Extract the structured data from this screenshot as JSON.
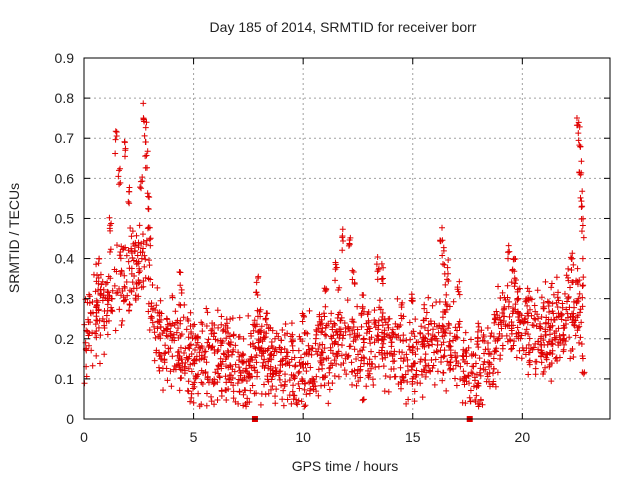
{
  "chart_data": {
    "type": "scatter",
    "title": "Day 185 of 2014, SRMTID for receiver borr",
    "xlabel": "GPS time / hours",
    "ylabel": "SRMTID / TECUs",
    "xlim": [
      0,
      24
    ],
    "ylim": [
      0,
      0.9
    ],
    "x_ticks": [
      0,
      5,
      10,
      15,
      20
    ],
    "x_tick_labels": [
      "0",
      "5",
      "10",
      "15",
      "20"
    ],
    "y_ticks": [
      0,
      0.1,
      0.2,
      0.3,
      0.4,
      0.5,
      0.6,
      0.7,
      0.8,
      0.9
    ],
    "y_tick_labels": [
      "0",
      "0.1",
      "0.2",
      "0.3",
      "0.4",
      "0.5",
      "0.6",
      "0.7",
      "0.8",
      "0.9"
    ],
    "grid": true,
    "marker": "plus",
    "color": "#e00000",
    "zero_markers_x": [
      7.8,
      17.6
    ],
    "series": [
      {
        "name": "SRMTID",
        "trend": [
          [
            0.0,
            0.2
          ],
          [
            0.3,
            0.22
          ],
          [
            0.6,
            0.26
          ],
          [
            1.0,
            0.28
          ],
          [
            1.5,
            0.33
          ],
          [
            2.0,
            0.35
          ],
          [
            2.5,
            0.38
          ],
          [
            2.9,
            0.4
          ],
          [
            3.2,
            0.22
          ],
          [
            3.6,
            0.2
          ],
          [
            4.0,
            0.19
          ],
          [
            4.5,
            0.2
          ],
          [
            4.8,
            0.14
          ],
          [
            5.5,
            0.16
          ],
          [
            6.0,
            0.15
          ],
          [
            6.5,
            0.15
          ],
          [
            7.0,
            0.14
          ],
          [
            7.5,
            0.12
          ],
          [
            7.9,
            0.18
          ],
          [
            8.5,
            0.15
          ],
          [
            9.0,
            0.14
          ],
          [
            9.5,
            0.13
          ],
          [
            10.0,
            0.12
          ],
          [
            10.5,
            0.15
          ],
          [
            11.0,
            0.17
          ],
          [
            11.5,
            0.19
          ],
          [
            12.0,
            0.2
          ],
          [
            12.5,
            0.17
          ],
          [
            13.0,
            0.18
          ],
          [
            13.5,
            0.22
          ],
          [
            14.0,
            0.18
          ],
          [
            14.5,
            0.16
          ],
          [
            15.0,
            0.15
          ],
          [
            15.5,
            0.18
          ],
          [
            16.0,
            0.2
          ],
          [
            16.5,
            0.22
          ],
          [
            17.0,
            0.17
          ],
          [
            17.5,
            0.12
          ],
          [
            18.0,
            0.13
          ],
          [
            18.5,
            0.15
          ],
          [
            19.0,
            0.22
          ],
          [
            19.5,
            0.26
          ],
          [
            20.0,
            0.23
          ],
          [
            20.5,
            0.22
          ],
          [
            21.0,
            0.2
          ],
          [
            21.5,
            0.22
          ],
          [
            22.0,
            0.26
          ],
          [
            22.5,
            0.28
          ],
          [
            22.8,
            0.3
          ]
        ],
        "spikes": [
          [
            1.45,
            0.72
          ],
          [
            1.6,
            0.64
          ],
          [
            1.85,
            0.7
          ],
          [
            2.05,
            0.58
          ],
          [
            2.6,
            0.62
          ],
          [
            2.75,
            0.8
          ],
          [
            2.8,
            0.74
          ],
          [
            2.85,
            0.68
          ],
          [
            2.95,
            0.58
          ],
          [
            3.0,
            0.48
          ],
          [
            0.65,
            0.4
          ],
          [
            1.2,
            0.52
          ],
          [
            2.2,
            0.46
          ],
          [
            2.45,
            0.44
          ],
          [
            4.4,
            0.37
          ],
          [
            7.9,
            0.36
          ],
          [
            10.0,
            0.29
          ],
          [
            11.0,
            0.33
          ],
          [
            11.5,
            0.4
          ],
          [
            11.8,
            0.48
          ],
          [
            12.1,
            0.46
          ],
          [
            12.3,
            0.38
          ],
          [
            13.4,
            0.41
          ],
          [
            13.6,
            0.39
          ],
          [
            14.5,
            0.3
          ],
          [
            15.0,
            0.32
          ],
          [
            16.3,
            0.49
          ],
          [
            16.4,
            0.44
          ],
          [
            16.6,
            0.4
          ],
          [
            17.1,
            0.35
          ],
          [
            19.4,
            0.45
          ],
          [
            19.6,
            0.41
          ],
          [
            19.8,
            0.33
          ],
          [
            20.3,
            0.33
          ],
          [
            21.6,
            0.32
          ],
          [
            22.3,
            0.42
          ],
          [
            22.55,
            0.77
          ],
          [
            22.6,
            0.73
          ],
          [
            22.65,
            0.66
          ],
          [
            22.7,
            0.58
          ],
          [
            22.75,
            0.5
          ],
          [
            22.8,
            0.16
          ],
          [
            12.7,
            0.32
          ],
          [
            13.0,
            0.28
          ],
          [
            8.3,
            0.27
          ],
          [
            5.9,
            0.24
          ],
          [
            6.5,
            0.25
          ],
          [
            9.5,
            0.25
          ],
          [
            18.0,
            0.24
          ],
          [
            19.2,
            0.28
          ]
        ]
      }
    ]
  }
}
